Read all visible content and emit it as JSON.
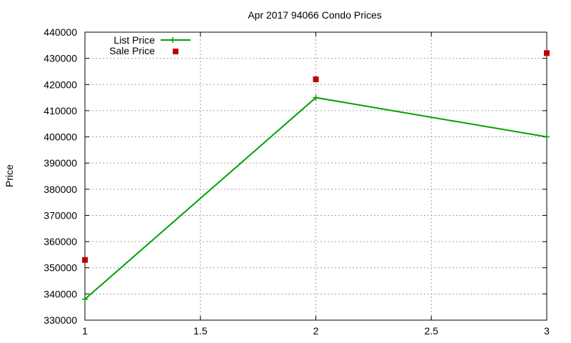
{
  "chart_data": {
    "type": "line",
    "title": "Apr 2017 94066 Condo Prices",
    "xlabel": "",
    "ylabel": "Price",
    "xlim": [
      1,
      3
    ],
    "ylim": [
      330000,
      440000
    ],
    "x_ticks": [
      "1",
      "1.5",
      "2",
      "2.5",
      "3"
    ],
    "y_ticks": [
      "330000",
      "340000",
      "350000",
      "360000",
      "370000",
      "380000",
      "390000",
      "400000",
      "410000",
      "420000",
      "430000",
      "440000"
    ],
    "grid": true,
    "legend_position": "top-left",
    "series": [
      {
        "name": "List Price",
        "style": "linespoints",
        "color": "#00a000",
        "x": [
          1,
          2,
          3
        ],
        "y": [
          338000,
          415000,
          400000
        ]
      },
      {
        "name": "Sale Price",
        "style": "points",
        "color": "#c00000",
        "x": [
          1,
          2,
          3
        ],
        "y": [
          353000,
          422000,
          432000
        ]
      }
    ]
  }
}
